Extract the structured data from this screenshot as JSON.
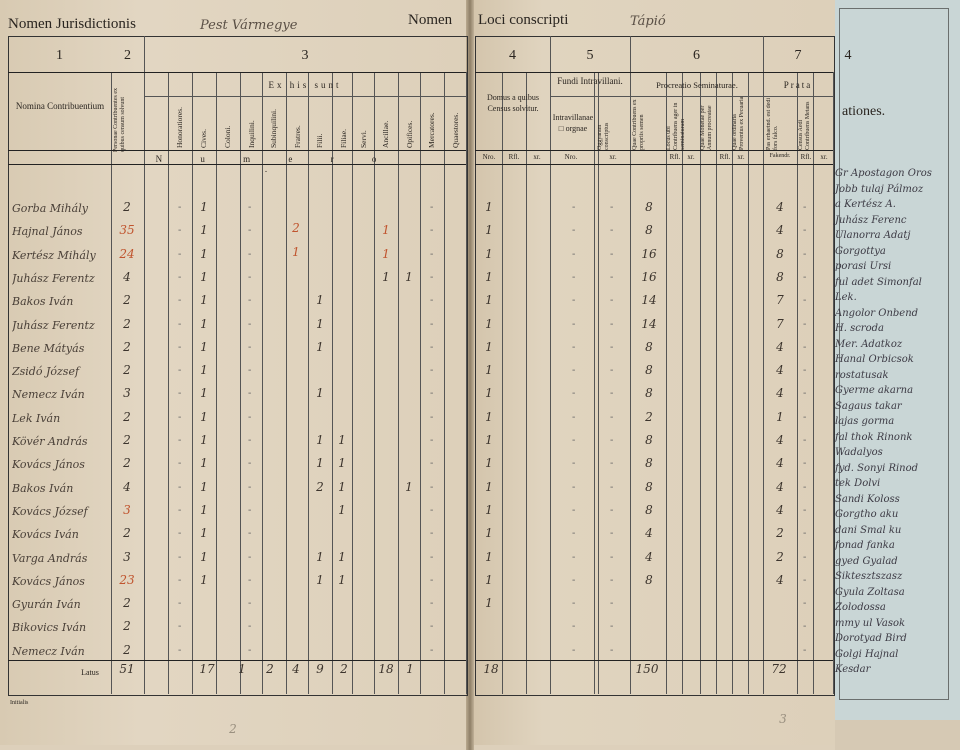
{
  "header": {
    "jurisdiction_label": "Nomen Jurisdictionis",
    "jurisdiction_value": "Pest Vármegye",
    "locus_label_a": "Nomen",
    "locus_label_b": "Loci conscripti",
    "locus_value": "Tápió"
  },
  "columns": {
    "c1": "1",
    "c2": "2",
    "c3": "3",
    "c4": "4",
    "c5": "5",
    "c6": "6",
    "c7": "7",
    "c4b": "4",
    "nomina": "Nomina Contribuentium",
    "ex_his_sunt": "Ex his sunt",
    "numero": "N u m e r o .",
    "domus": "Domus a quibus Census solvitur.",
    "fundi": "Fundi Intravillani.",
    "intravillanae": "Intravillanae □ orgnae",
    "procreatio": "Procreatio Seminaturae.",
    "prata": "Prata",
    "blue_header": "ationes.",
    "sub3": [
      "Honoratiores.",
      "Cives.",
      "Coloni.",
      "Inquilini.",
      "Subinquilini.",
      "Fratres.",
      "Filii.",
      "Filiae.",
      "Servi.",
      "Ancillae.",
      "Opifices.",
      "Mercatores.",
      "Quaestores."
    ],
    "units": [
      "Nro.",
      "Rfl.",
      "xr.",
      "Nro.",
      "Rfl.",
      "xr.",
      "Rfl.",
      "xr.",
      "Rfl.",
      "xr.",
      "Rfl.",
      "xr."
    ],
    "fakendr": "Fakendr.",
    "ex_tiny_2": "Personae Contribuentes ex quibus censum solvunt",
    "fundi_tiny": "Oggyaram conscriptus",
    "proc_tiny1": "Quae Contribuens ex propriis semen",
    "proc_tiny2": "Locus ubi Contribuens ager in seminaturam",
    "proc_tiny3": "Quae Monetae per Annum procreatae",
    "proc_tiny4": "Quae ordinaria Proventus ex Pecuaria",
    "prata_tiny1": "Pas erhaetnd. est dedi fors falco.",
    "prata_tiny2": "Census Aedi Contribuens Metans"
  },
  "rows": [
    {
      "name": "Gorba Mihály",
      "c2": "2",
      "coloni": "1",
      "fratres": "",
      "filii": "",
      "filiae": "",
      "ancillae": "",
      "opif": "",
      "domus": "1",
      "sem": "8",
      "prata": "4",
      "red2": false
    },
    {
      "name": "Hajnal János",
      "c2": "35",
      "coloni": "1",
      "fratres": "2",
      "filii": "",
      "filiae": "",
      "ancillae": "1",
      "opif": "",
      "domus": "1",
      "sem": "8",
      "prata": "4",
      "red2": true
    },
    {
      "name": "Kertész Mihály",
      "c2": "24",
      "coloni": "1",
      "fratres": "1",
      "filii": "",
      "filiae": "",
      "ancillae": "1",
      "opif": "",
      "domus": "1",
      "sem": "16",
      "prata": "8",
      "red2": true
    },
    {
      "name": "Juhász Ferentz",
      "c2": "4",
      "coloni": "1",
      "fratres": "",
      "filii": "",
      "filiae": "",
      "ancillae": "1",
      "opif": "1",
      "domus": "1",
      "sem": "16",
      "prata": "8",
      "red2": false
    },
    {
      "name": "Bakos Iván",
      "c2": "2",
      "coloni": "1",
      "fratres": "",
      "filii": "1",
      "filiae": "",
      "ancillae": "",
      "opif": "",
      "domus": "1",
      "sem": "14",
      "prata": "7",
      "red2": false
    },
    {
      "name": "Juhász Ferentz",
      "c2": "2",
      "coloni": "1",
      "fratres": "",
      "filii": "1",
      "filiae": "",
      "ancillae": "",
      "opif": "",
      "domus": "1",
      "sem": "14",
      "prata": "7",
      "red2": false
    },
    {
      "name": "Bene Mátyás",
      "c2": "2",
      "coloni": "1",
      "fratres": "",
      "filii": "1",
      "filiae": "",
      "ancillae": "",
      "opif": "",
      "domus": "1",
      "sem": "8",
      "prata": "4",
      "red2": false
    },
    {
      "name": "Zsidó József",
      "c2": "2",
      "coloni": "1",
      "fratres": "",
      "filii": "",
      "filiae": "",
      "ancillae": "",
      "opif": "",
      "domus": "1",
      "sem": "8",
      "prata": "4",
      "red2": false
    },
    {
      "name": "Nemecz Iván",
      "c2": "3",
      "coloni": "1",
      "fratres": "",
      "filii": "1",
      "filiae": "",
      "ancillae": "",
      "opif": "",
      "domus": "1",
      "sem": "8",
      "prata": "4",
      "red2": false
    },
    {
      "name": "Lek Iván",
      "c2": "2",
      "coloni": "1",
      "fratres": "",
      "filii": "",
      "filiae": "",
      "ancillae": "",
      "opif": "",
      "domus": "1",
      "sem": "2",
      "prata": "1",
      "red2": false
    },
    {
      "name": "Kövér András",
      "c2": "2",
      "coloni": "1",
      "fratres": "",
      "filii": "1",
      "filiae": "1",
      "ancillae": "",
      "opif": "",
      "domus": "1",
      "sem": "8",
      "prata": "4",
      "red2": false
    },
    {
      "name": "Kovács János",
      "c2": "2",
      "coloni": "1",
      "fratres": "",
      "filii": "1",
      "filiae": "1",
      "ancillae": "",
      "opif": "",
      "domus": "1",
      "sem": "8",
      "prata": "4",
      "red2": false
    },
    {
      "name": "Bakos Iván",
      "c2": "4",
      "coloni": "1",
      "fratres": "",
      "filii": "2",
      "filiae": "1",
      "ancillae": "",
      "opif": "1",
      "domus": "1",
      "sem": "8",
      "prata": "4",
      "red2": false
    },
    {
      "name": "Kovács József",
      "c2": "3",
      "coloni": "1",
      "fratres": "",
      "filii": "",
      "filiae": "1",
      "ancillae": "",
      "opif": "",
      "domus": "1",
      "sem": "8",
      "prata": "4",
      "red2": true
    },
    {
      "name": "Kovács Iván",
      "c2": "2",
      "coloni": "1",
      "fratres": "",
      "filii": "",
      "filiae": "",
      "ancillae": "",
      "opif": "",
      "domus": "1",
      "sem": "4",
      "prata": "2",
      "red2": false
    },
    {
      "name": "Varga András",
      "c2": "3",
      "coloni": "1",
      "fratres": "",
      "filii": "1",
      "filiae": "1",
      "ancillae": "",
      "opif": "",
      "domus": "1",
      "sem": "4",
      "prata": "2",
      "red2": false
    },
    {
      "name": "Kovács János",
      "c2": "23",
      "coloni": "1",
      "fratres": "",
      "filii": "1",
      "filiae": "1",
      "ancillae": "",
      "opif": "",
      "domus": "1",
      "sem": "8",
      "prata": "4",
      "red2": true
    },
    {
      "name": "Gyurán Iván",
      "c2": "2",
      "coloni": "",
      "fratres": "",
      "filii": "",
      "filiae": "",
      "ancillae": "",
      "opif": "",
      "domus": "1",
      "sem": "",
      "prata": "",
      "red2": false
    },
    {
      "name": "Bikovics Iván",
      "c2": "2",
      "coloni": "",
      "fratres": "",
      "filii": "",
      "filiae": "",
      "ancillae": "",
      "opif": "",
      "domus": "",
      "sem": "",
      "prata": "",
      "red2": false
    },
    {
      "name": "Nemecz Iván",
      "c2": "2",
      "coloni": "",
      "fratres": "",
      "filii": "",
      "filiae": "",
      "ancillae": "",
      "opif": "",
      "domus": "",
      "sem": "",
      "prata": "",
      "red2": false
    }
  ],
  "totals": {
    "label": "Latus",
    "c2": "51",
    "coloni": "17",
    "inquilini": "1",
    "subinq": "2",
    "fratres": "4",
    "filii": "9",
    "filiae": "2",
    "ancillae": "18",
    "opif": "1",
    "domus": "18",
    "sem": "150",
    "prata": "72"
  },
  "footer": {
    "left_mark": "Initialis",
    "pencil_a": "2",
    "pencil_b": "3"
  },
  "side_notes": [
    "Gr Apostagon Oros",
    "Jobb tulaj Pálmoz",
    "a Kertész A.",
    "Juhász Ferenc",
    "Ulanorra Adatj",
    "Gorgottya",
    "porasi Ursi",
    "ful adet Simonfal",
    "Lek.",
    "Angolor Onbend",
    "H. scroda",
    "Mer. Adatkoz",
    "Hanal Orbicsok",
    "rostatusak",
    "Gyerme akarna",
    "Sagaus takar",
    "lajas gorma",
    "fal thok Rinonk",
    "Wadalyos",
    "fyd. Sonyi Rinod",
    "tek Dolvi",
    "Sandi Koloss",
    "Gorgtho aku",
    "dani Smal ku",
    "fonad fanka",
    "gyed Gyalad",
    "Siktesztszasz",
    "Gyula Zoltasa",
    "Zolodossa",
    "mmy ul Vasok",
    "Dorotyad Bird",
    "Golgi Hajnal",
    "Kesdar"
  ]
}
